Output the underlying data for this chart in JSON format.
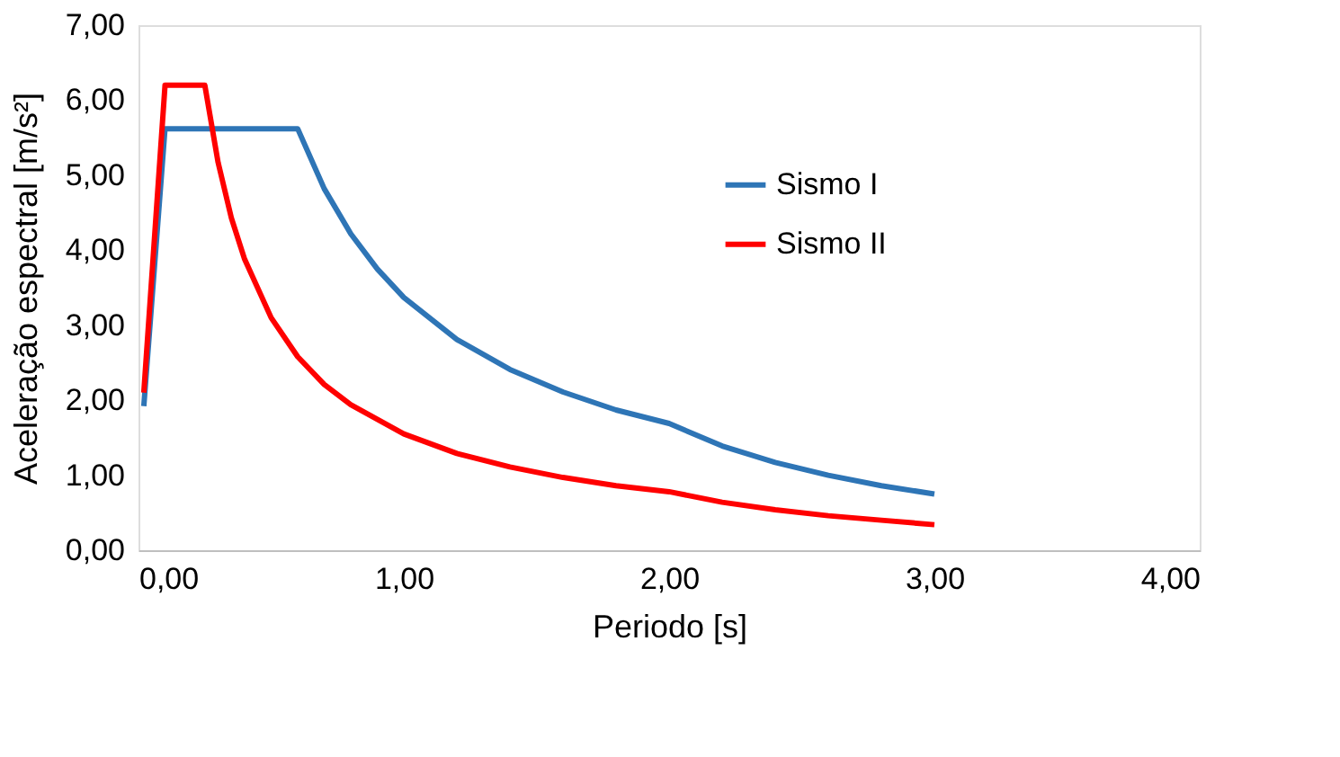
{
  "chart_data": {
    "type": "line",
    "xlabel": "Periodo    [s]",
    "ylabel": "Aceleração espectral    [m/s²]",
    "xlim": [
      0,
      4
    ],
    "ylim": [
      0,
      7
    ],
    "xticks": [
      {
        "value": 0,
        "label": "0,00"
      },
      {
        "value": 1,
        "label": "1,00"
      },
      {
        "value": 2,
        "label": "2,00"
      },
      {
        "value": 3,
        "label": "3,00"
      },
      {
        "value": 4,
        "label": "4,00"
      }
    ],
    "yticks": [
      {
        "value": 0,
        "label": "0,00"
      },
      {
        "value": 1,
        "label": "1,00"
      },
      {
        "value": 2,
        "label": "2,00"
      },
      {
        "value": 3,
        "label": "3,00"
      },
      {
        "value": 4,
        "label": "4,00"
      },
      {
        "value": 5,
        "label": "5,00"
      },
      {
        "value": 6,
        "label": "6,00"
      },
      {
        "value": 7,
        "label": "7,00"
      }
    ],
    "series": [
      {
        "name": "Sismo I",
        "color": "#2e75b6",
        "x": [
          0.02,
          0.1,
          0.6,
          0.7,
          0.8,
          0.9,
          1.0,
          1.2,
          1.4,
          1.6,
          1.8,
          2.0,
          2.2,
          2.4,
          2.6,
          2.8,
          3.0
        ],
        "values": [
          1.92,
          5.62,
          5.62,
          4.82,
          4.22,
          3.75,
          3.37,
          2.81,
          2.41,
          2.11,
          1.87,
          1.69,
          1.39,
          1.17,
          1.0,
          0.86,
          0.75
        ]
      },
      {
        "name": "Sismo II",
        "color": "#ff0000",
        "x": [
          0.02,
          0.1,
          0.25,
          0.3,
          0.35,
          0.4,
          0.5,
          0.6,
          0.7,
          0.8,
          1.0,
          1.2,
          1.4,
          1.6,
          1.8,
          2.0,
          2.2,
          2.4,
          2.6,
          2.8,
          3.0
        ],
        "values": [
          2.1,
          6.2,
          6.2,
          5.17,
          4.43,
          3.88,
          3.1,
          2.58,
          2.21,
          1.94,
          1.55,
          1.29,
          1.11,
          0.97,
          0.86,
          0.78,
          0.64,
          0.54,
          0.46,
          0.4,
          0.34
        ]
      }
    ],
    "legend": "top",
    "grid": false,
    "marker": "none",
    "line_style": "solid"
  }
}
